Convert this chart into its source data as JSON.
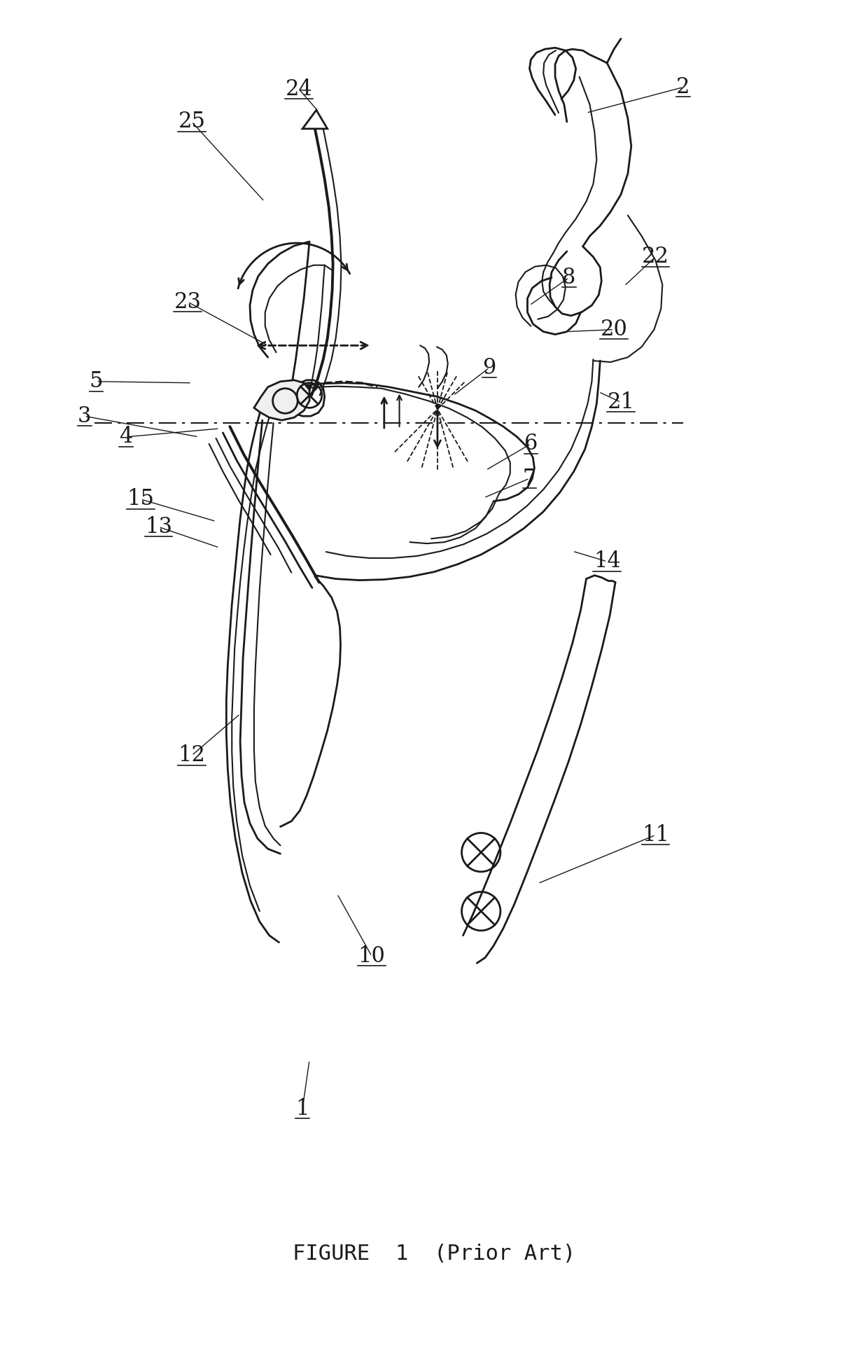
{
  "title": "FIGURE 1 (Prior Art)",
  "bg_color": "#ffffff",
  "line_color": "#1a1a1a",
  "fig_width": 12.4,
  "fig_height": 19.35
}
